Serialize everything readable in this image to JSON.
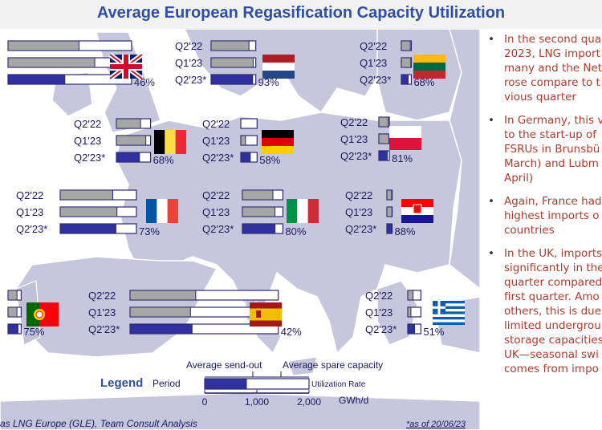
{
  "title": "Average European Regasification Capacity Utilization",
  "colors": {
    "title": "#2e4fa3",
    "sendout_q2_22": "#a6a6a6",
    "sendout_q1_23": "#a6a6a6",
    "sendout_q2_23": "#3030a0",
    "spare": "#ffffff",
    "map_land": "#c6c6dc",
    "map_sea": "#ffffff",
    "bullet_text": "#b03a2e"
  },
  "chart_data": {
    "type": "bar",
    "orientation": "horizontal",
    "unit": "GWh/d",
    "periods": [
      "Q2'22",
      "Q1'23",
      "Q2'23*"
    ],
    "countries": [
      {
        "country": "United Kingdom",
        "flag": "uk-flag",
        "capacity": 2350,
        "sendout": [
          1350,
          1650,
          1080
        ],
        "rate_label": "46%"
      },
      {
        "country": "Netherlands",
        "flag": "netherlands-flag",
        "capacity": 850,
        "sendout": [
          720,
          800,
          790
        ],
        "rate_label": "93%"
      },
      {
        "country": "Lithuania",
        "flag": "lithuania-flag",
        "capacity": 190,
        "sendout": [
          170,
          180,
          130
        ],
        "rate_label": "68%"
      },
      {
        "country": "Belgium",
        "flag": "belgium-flag",
        "capacity": 650,
        "sendout": [
          460,
          560,
          440
        ],
        "rate_label": "68%"
      },
      {
        "country": "Germany",
        "flag": "germany-flag",
        "capacity": 310,
        "sendout": [
          0,
          90,
          180
        ],
        "rate_label": "58%"
      },
      {
        "country": "Poland",
        "flag": "poland-flag",
        "capacity": 200,
        "sendout": [
          180,
          190,
          160
        ],
        "rate_label": "81%"
      },
      {
        "country": "France",
        "flag": "france-flag",
        "capacity": 1450,
        "sendout": [
          1000,
          1080,
          1060
        ],
        "rate_label": "73%"
      },
      {
        "country": "Italy",
        "flag": "italy-flag",
        "capacity": 770,
        "sendout": [
          580,
          620,
          620
        ],
        "rate_label": "80%"
      },
      {
        "country": "Croatia",
        "flag": "croatia-flag",
        "capacity": 100,
        "sendout": [
          90,
          95,
          88
        ],
        "rate_label": "88%"
      },
      {
        "country": "Portugal",
        "flag": "portugal-flag",
        "capacity": 250,
        "sendout": [
          170,
          170,
          190
        ],
        "rate_label": "75%"
      },
      {
        "country": "Spain",
        "flag": "spain-flag",
        "capacity": 2820,
        "sendout": [
          1250,
          1150,
          1180
        ],
        "rate_label": "42%"
      },
      {
        "country": "Greece",
        "flag": "greece-flag",
        "capacity": 250,
        "sendout": [
          100,
          60,
          130
        ],
        "rate_label": "51%"
      }
    ],
    "legend": {
      "heading": "Legend",
      "period_label": "Period",
      "sendout_label": "Average send-out",
      "spare_label": "Average spare capacity",
      "rate_label": "Utilization Rate",
      "ticks": [
        "0",
        "1,000",
        "2,000"
      ],
      "tick_values": [
        0,
        1000,
        2000
      ],
      "axis_max": 2000,
      "unit_label": "GWh/d",
      "example": {
        "capacity": 2000,
        "sendout": 800
      }
    }
  },
  "source_text": "as LNG Europe (GLE), Team Consult Analysis",
  "footnote": "*as of 20/06/23",
  "bullets": [
    {
      "lines": [
        "In the second qua",
        "2023, LNG import",
        "many and the Net",
        "rose compare to t",
        "vious quarter"
      ]
    },
    {
      "lines": [
        "In Germany, this v",
        "to the start-up of",
        "FSRUs in Brunsbü",
        "March) and Lubm",
        "April)"
      ]
    },
    {
      "lines": [
        "Again, France had",
        "highest imports o",
        "countries"
      ]
    },
    {
      "lines": [
        "In the UK, imports",
        "significantly in the",
        "quarter compared",
        "first quarter. Amo",
        "others, this is due",
        "limited undergrou",
        "storage capacities",
        "UK—seasonal swi",
        "comes from impo"
      ]
    }
  ]
}
